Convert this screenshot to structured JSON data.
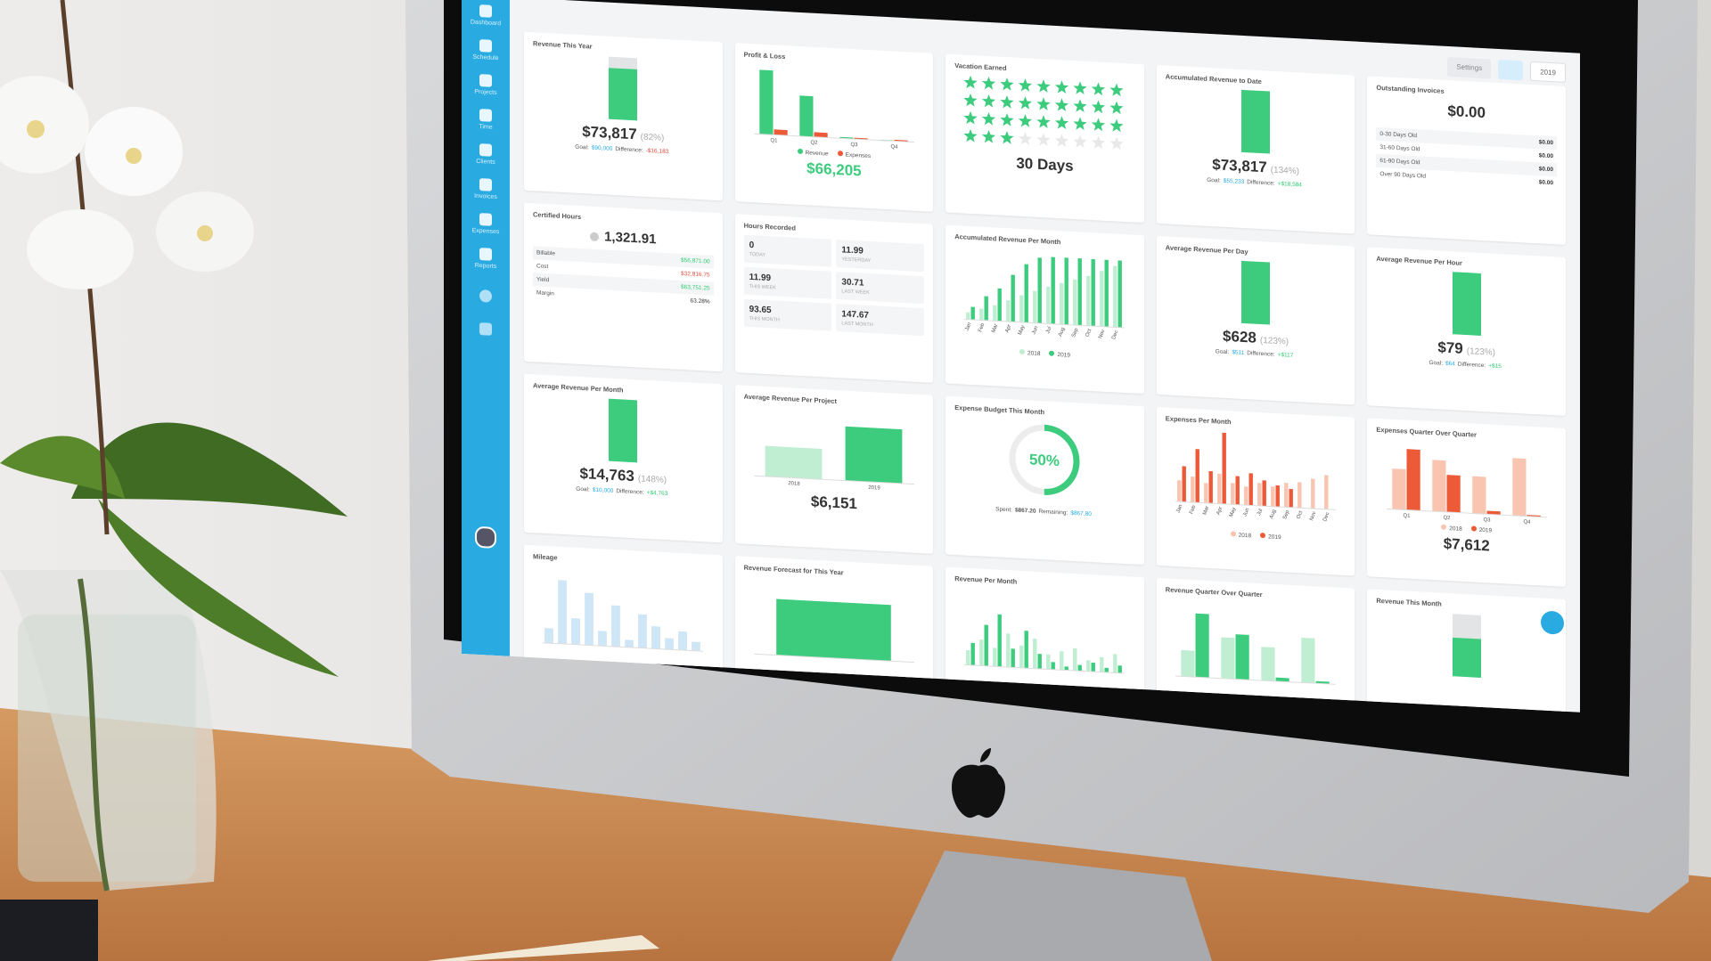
{
  "sidebar": {
    "items": [
      "Dashboard",
      "Schedule",
      "Projects",
      "Time",
      "Clients",
      "Invoices",
      "Expenses",
      "Reports"
    ]
  },
  "toolbar": {
    "settings": "Settings",
    "year": "2019"
  },
  "cards": [
    {
      "title": "Revenue This Year",
      "kind": "goal",
      "fill": 82,
      "ylim": [
        0,
        100
      ],
      "track": true,
      "value": "$73,817",
      "percent": "(82%)",
      "goal_label": "Goal:",
      "goal": "$90,000",
      "difference_label": "Difference:",
      "difference": "-$16,183",
      "difference_color": "#e74c3c"
    },
    {
      "title": "Profit & Loss",
      "kind": "bars",
      "categories": [
        "Q1",
        "Q2",
        "Q3",
        "Q4"
      ],
      "series": [
        {
          "name": "Revenue",
          "color": "#3dcc7e",
          "values": [
            95,
            60,
            2,
            1
          ]
        },
        {
          "name": "Expenses",
          "color": "#ec5a38",
          "values": [
            8,
            7,
            2,
            2
          ]
        }
      ],
      "ylim": [
        0,
        100
      ],
      "total": "$66,205",
      "total_color": "#3dcc7e"
    },
    {
      "title": "Vacation Earned",
      "kind": "stars",
      "earned": 30,
      "total": 36,
      "value": "30 Days"
    },
    {
      "title": "Accumulated Revenue to Date",
      "kind": "goal",
      "fill": 100,
      "ylim": [
        0,
        100
      ],
      "track": false,
      "value": "$73,817",
      "percent": "(134%)",
      "goal_label": "Goal:",
      "goal": "$55,233",
      "difference_label": "Difference:",
      "difference": "+$18,584",
      "difference_color": "#2ecc71"
    },
    {
      "title": "Outstanding Invoices",
      "kind": "list",
      "value": "$0.00",
      "rows": [
        [
          "0-30 Days Old",
          "$0.00"
        ],
        [
          "31-60 Days Old",
          "$0.00"
        ],
        [
          "61-90 Days Old",
          "$0.00"
        ],
        [
          "Over 90 Days Old",
          "$0.00"
        ]
      ]
    },
    {
      "title": "Certified Hours",
      "kind": "certified",
      "value": "1,321.91",
      "rows": [
        {
          "label": "Billable",
          "value": "$56,871.00",
          "color": "#2ecc71"
        },
        {
          "label": "Cost",
          "value": "$32,816.75",
          "color": "#e74c3c"
        },
        {
          "label": "Yield",
          "value": "$63,751.25",
          "color": "#2ecc71"
        },
        {
          "label": "Margin",
          "value": "63.28%",
          "color": "#333333"
        }
      ]
    },
    {
      "title": "Hours Recorded",
      "kind": "tiles",
      "tiles": [
        [
          "0",
          "Today"
        ],
        [
          "11.99",
          "Yesterday"
        ],
        [
          "11.99",
          "This Week"
        ],
        [
          "30.71",
          "Last Week"
        ],
        [
          "93.65",
          "This Month"
        ],
        [
          "147.67",
          "Last Month"
        ]
      ]
    },
    {
      "title": "Accumulated Revenue Per Month",
      "kind": "bars",
      "rotate": true,
      "categories": [
        "Jan",
        "Feb",
        "Mar",
        "Apr",
        "May",
        "Jun",
        "Jul",
        "Aug",
        "Sep",
        "Oct",
        "Nov",
        "Dec"
      ],
      "series": [
        {
          "name": "2018",
          "color": "#bfeed3",
          "values": [
            10,
            16,
            22,
            30,
            38,
            45,
            52,
            58,
            64,
            70,
            78,
            86
          ]
        },
        {
          "name": "2019",
          "color": "#3dcc7e",
          "values": [
            18,
            34,
            46,
            66,
            82,
            92,
            94,
            94,
            94,
            94,
            94,
            94
          ]
        }
      ],
      "ylim": [
        0,
        100
      ]
    },
    {
      "title": "Average Revenue Per Day",
      "kind": "goal",
      "fill": 100,
      "ylim": [
        0,
        100
      ],
      "track": false,
      "value": "$628",
      "percent": "(123%)",
      "goal_label": "Goal:",
      "goal": "$511",
      "difference_label": "Difference:",
      "difference": "+$117",
      "difference_color": "#2ecc71"
    },
    {
      "title": "Average Revenue Per Hour",
      "kind": "goal",
      "fill": 100,
      "ylim": [
        0,
        100
      ],
      "track": false,
      "value": "$79",
      "percent": "(123%)",
      "goal_label": "Goal:",
      "goal": "$64",
      "difference_label": "Difference:",
      "difference": "+$15",
      "difference_color": "#2ecc71"
    },
    {
      "title": "Average Revenue Per Month",
      "kind": "goal",
      "fill": 100,
      "ylim": [
        0,
        100
      ],
      "track": false,
      "value": "$14,763",
      "percent": "(148%)",
      "goal_label": "Goal:",
      "goal": "$10,000",
      "difference_label": "Difference:",
      "difference": "+$4,763",
      "difference_color": "#2ecc71"
    },
    {
      "title": "Average Revenue Per Project",
      "kind": "bars",
      "categories": [
        "2018",
        "2019"
      ],
      "series": [
        {
          "colors": [
            "#bfeed3",
            "#3dcc7e"
          ],
          "values": [
            45,
            80
          ]
        }
      ],
      "ylim": [
        0,
        100
      ],
      "total": "$6,151",
      "total_color": "#333333"
    },
    {
      "title": "Expense Budget This Month",
      "kind": "gauge",
      "value": 50,
      "lim": [
        0,
        100
      ],
      "value_label": "50%",
      "spent_label": "Spent:",
      "spent": "$867.20",
      "remaining_label": "Remaining:",
      "remaining": "$867.80"
    },
    {
      "title": "Expenses Per Month",
      "kind": "bars",
      "rotate": true,
      "categories": [
        "Jan",
        "Feb",
        "Mar",
        "Apr",
        "May",
        "Jun",
        "Jul",
        "Aug",
        "Sep",
        "Oct",
        "Nov",
        "Dec"
      ],
      "series": [
        {
          "name": "2018",
          "color": "#f9c4b0",
          "values": [
            30,
            36,
            28,
            42,
            30,
            26,
            32,
            28,
            34,
            36,
            42,
            48
          ]
        },
        {
          "name": "2019",
          "color": "#ec5a38",
          "values": [
            50,
            75,
            45,
            100,
            40,
            45,
            36,
            30,
            26,
            0,
            0,
            0
          ]
        }
      ],
      "ylim": [
        0,
        100
      ]
    },
    {
      "title": "Expenses Quarter Over Quarter",
      "kind": "bars",
      "categories": [
        "Q1",
        "Q2",
        "Q3",
        "Q4"
      ],
      "series": [
        {
          "name": "2018",
          "color": "#f9c4b0",
          "values": [
            60,
            76,
            55,
            85
          ]
        },
        {
          "name": "2019",
          "color": "#ec5a38",
          "values": [
            90,
            55,
            5,
            2
          ]
        }
      ],
      "ylim": [
        0,
        100
      ],
      "total": "$7,612",
      "total_color": "#333333"
    },
    {
      "title": "Mileage",
      "kind": "bars",
      "series": [
        {
          "color": "#cfe6f7",
          "values": [
            20,
            85,
            35,
            70,
            20,
            55,
            10,
            45,
            30,
            15,
            25,
            12
          ]
        }
      ],
      "ylim": [
        0,
        100
      ]
    },
    {
      "title": "Revenue Forecast for This Year",
      "kind": "bars",
      "series": [
        {
          "color": "#3dcc7e",
          "values": [
            75
          ]
        }
      ],
      "ylim": [
        0,
        100
      ]
    },
    {
      "title": "Revenue Per Month",
      "kind": "bars",
      "series": [
        {
          "color": "#bfeed3",
          "values": [
            20,
            35,
            25,
            45,
            30,
            40,
            20,
            25,
            30,
            15,
            20,
            25
          ]
        },
        {
          "color": "#3dcc7e",
          "values": [
            30,
            55,
            70,
            25,
            50,
            20,
            10,
            5,
            8,
            12,
            6,
            10
          ]
        }
      ],
      "ylim": [
        0,
        100
      ]
    },
    {
      "title": "Revenue Quarter Over Quarter",
      "kind": "bars",
      "series": [
        {
          "color": "#bfeed3",
          "values": [
            35,
            55,
            45,
            60
          ]
        },
        {
          "color": "#3dcc7e",
          "values": [
            85,
            60,
            5,
            3
          ]
        }
      ],
      "ylim": [
        0,
        100
      ]
    },
    {
      "title": "Revenue This Month",
      "kind": "goal",
      "fill": 62,
      "ylim": [
        0,
        100
      ],
      "track": true
    }
  ]
}
